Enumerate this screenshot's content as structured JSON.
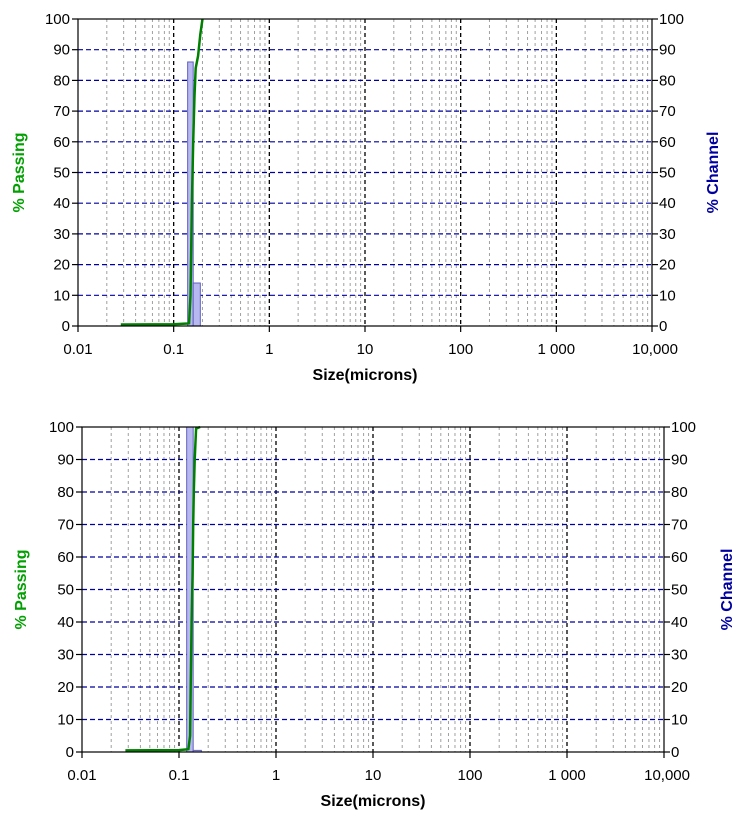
{
  "chart_data": [
    {
      "type": "line",
      "xlabel": "Size(microns)",
      "ylabel_left": "% Passing",
      "ylabel_right": "% Channel",
      "x_scale": "log",
      "xlim": [
        0.01,
        10000
      ],
      "ylim": [
        0,
        100
      ],
      "x_tick_labels": [
        "0.01",
        "0.1",
        "1",
        "10",
        "100",
        "1 000",
        "10,000"
      ],
      "y_tick_labels": [
        "0",
        "10",
        "20",
        "30",
        "40",
        "50",
        "60",
        "70",
        "80",
        "90",
        "100"
      ],
      "y2_tick_labels": [
        "0",
        "10",
        "20",
        "30",
        "40",
        "50",
        "60",
        "70",
        "80",
        "90",
        "100"
      ],
      "grid": true,
      "colors": {
        "passing": "#008000",
        "channel_fill": "#b8b8f0",
        "channel_edge": "#6060c0",
        "grid_h": "#0000a0",
        "grid_major": "#000000",
        "grid_minor": "#a0a0a0",
        "left_label": "#00a000",
        "right_label": "#0000a0"
      },
      "passing": {
        "x": [
          0.028,
          0.1,
          0.14,
          0.145,
          0.15,
          0.155,
          0.16,
          0.165,
          0.17,
          0.18,
          0.19,
          0.2
        ],
        "y": [
          0.5,
          0.6,
          0.8,
          0.9,
          10,
          40,
          60,
          75,
          84,
          88,
          95,
          100
        ]
      },
      "channel": [
        {
          "x0": 0.14,
          "x1": 0.16,
          "value": 86
        },
        {
          "x0": 0.16,
          "x1": 0.19,
          "value": 14
        }
      ]
    },
    {
      "type": "line",
      "xlabel": "Size(microns)",
      "ylabel_left": "% Passing",
      "ylabel_right": "% Channel",
      "x_scale": "log",
      "xlim": [
        0.01,
        10000
      ],
      "ylim": [
        0,
        100
      ],
      "x_tick_labels": [
        "0.01",
        "0.1",
        "1",
        "10",
        "100",
        "1 000",
        "10,000"
      ],
      "y_tick_labels": [
        "0",
        "10",
        "20",
        "30",
        "40",
        "50",
        "60",
        "70",
        "80",
        "90",
        "100"
      ],
      "y2_tick_labels": [
        "0",
        "10",
        "20",
        "30",
        "40",
        "50",
        "60",
        "70",
        "80",
        "90",
        "100"
      ],
      "grid": true,
      "colors": {
        "passing": "#008000",
        "channel_fill": "#b8b8f0",
        "channel_edge": "#6060c0",
        "grid_h": "#0000a0",
        "grid_major": "#000000",
        "grid_minor": "#a0a0a0",
        "left_label": "#00a000",
        "right_label": "#0000a0"
      },
      "passing": {
        "x": [
          0.028,
          0.1,
          0.12,
          0.125,
          0.13,
          0.132,
          0.135,
          0.138,
          0.14,
          0.142,
          0.145,
          0.15,
          0.165
        ],
        "y": [
          0.5,
          0.6,
          0.8,
          0.9,
          5,
          20,
          40,
          55,
          70,
          80,
          90,
          99.5,
          100
        ]
      },
      "channel": [
        {
          "x0": 0.12,
          "x1": 0.14,
          "value": 100
        },
        {
          "x0": 0.14,
          "x1": 0.17,
          "value": 0.5
        }
      ]
    }
  ]
}
